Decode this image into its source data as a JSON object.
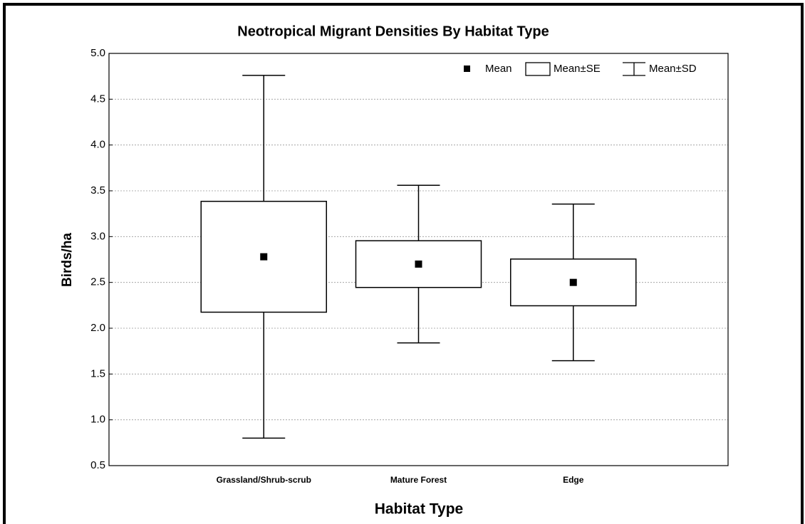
{
  "chart_data": {
    "type": "mean-se-sd",
    "title": "Neotropical Migrant Densities By Habitat Type",
    "x_label": "Habitat Type",
    "y_label": "Birds/ha",
    "categories": [
      "Grassland/Shrub-scrub",
      "Mature Forest",
      "Edge"
    ],
    "mean": [
      2.78,
      2.7,
      2.5
    ],
    "se": [
      0.605,
      0.255,
      0.255
    ],
    "sd": [
      1.98,
      0.86,
      0.855
    ],
    "legend": {
      "mean": "Mean",
      "se": "Mean±SE",
      "sd": "Mean±SD"
    },
    "ylim": [
      0.5,
      5.0
    ],
    "yticks": [
      {
        "value": 0.5,
        "label": "0.5"
      },
      {
        "value": 1.0,
        "label": "1.0"
      },
      {
        "value": 1.5,
        "label": "1.5"
      },
      {
        "value": 2.0,
        "label": "2.0"
      },
      {
        "value": 2.5,
        "label": "2.5"
      },
      {
        "value": 3.0,
        "label": "3.0"
      },
      {
        "value": 3.5,
        "label": "3.5"
      },
      {
        "value": 4.0,
        "label": "4.0"
      },
      {
        "value": 4.5,
        "label": "4.5"
      },
      {
        "value": 5.0,
        "label": "5.0"
      }
    ],
    "grid": true,
    "color": "#000000"
  }
}
